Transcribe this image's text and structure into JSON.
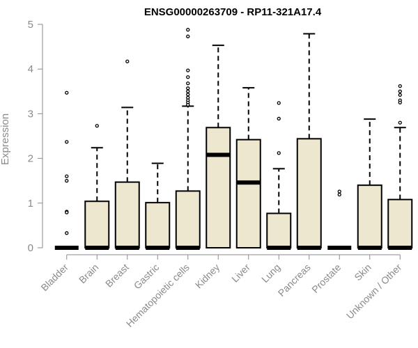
{
  "chart_data": {
    "type": "boxplot",
    "title": "ENSG00000263709 - RP11-321A17.4",
    "ylabel": "Expression",
    "xlabel": "",
    "ylim": [
      0,
      5
    ],
    "yticks": [
      0,
      1,
      2,
      3,
      4,
      5
    ],
    "grid": false,
    "box_color": "#ede7cf",
    "categories": [
      "Bladder",
      "Brain",
      "Breast",
      "Gastric",
      "Hematopoietic cells",
      "Kidney",
      "Liver",
      "Lung",
      "Pancreas",
      "Prostate",
      "Skin",
      "Unknown / Other"
    ],
    "boxes": [
      {
        "category": "Bladder",
        "q1": 0,
        "median": 0,
        "q3": 0,
        "whisker_low": 0,
        "whisker_high": 0,
        "outliers": [
          3.47,
          2.37,
          1.6,
          1.5,
          0.81,
          0.79,
          0.33
        ]
      },
      {
        "category": "Brain",
        "q1": 0,
        "median": 0,
        "q3": 1.04,
        "whisker_low": 0,
        "whisker_high": 2.24,
        "outliers": [
          2.73
        ]
      },
      {
        "category": "Breast",
        "q1": 0,
        "median": 0,
        "q3": 1.47,
        "whisker_low": 0,
        "whisker_high": 3.14,
        "outliers": [
          4.17
        ]
      },
      {
        "category": "Gastric",
        "q1": 0,
        "median": 0,
        "q3": 1.01,
        "whisker_low": 0,
        "whisker_high": 1.89,
        "outliers": []
      },
      {
        "category": "Hematopoietic cells",
        "q1": 0,
        "median": 0,
        "q3": 1.27,
        "whisker_low": 0,
        "whisker_high": 3.17,
        "outliers": [
          4.88,
          4.73,
          3.97,
          3.82,
          3.68,
          3.57,
          3.5,
          3.43,
          3.36,
          3.3,
          3.25,
          3.2
        ]
      },
      {
        "category": "Kidney",
        "q1": 0,
        "median": 2.08,
        "q3": 2.69,
        "whisker_low": 0,
        "whisker_high": 4.53,
        "outliers": []
      },
      {
        "category": "Liver",
        "q1": 0,
        "median": 1.46,
        "q3": 2.42,
        "whisker_low": 0,
        "whisker_high": 3.58,
        "outliers": []
      },
      {
        "category": "Lung",
        "q1": 0,
        "median": 0,
        "q3": 0.77,
        "whisker_low": 0,
        "whisker_high": 1.77,
        "outliers": [
          3.24,
          2.89,
          2.12
        ]
      },
      {
        "category": "Pancreas",
        "q1": 0,
        "median": 0,
        "q3": 2.44,
        "whisker_low": 0,
        "whisker_high": 4.79,
        "outliers": []
      },
      {
        "category": "Prostate",
        "q1": 0,
        "median": 0,
        "q3": 0,
        "whisker_low": 0,
        "whisker_high": 0,
        "outliers": [
          1.26,
          1.19
        ]
      },
      {
        "category": "Skin",
        "q1": 0,
        "median": 0,
        "q3": 1.4,
        "whisker_low": 0,
        "whisker_high": 2.88,
        "outliers": []
      },
      {
        "category": "Unknown / Other",
        "q1": 0,
        "median": 0,
        "q3": 1.08,
        "whisker_low": 0,
        "whisker_high": 2.69,
        "outliers": [
          3.62,
          3.5,
          3.42,
          3.3,
          3.25,
          2.8
        ]
      }
    ]
  }
}
